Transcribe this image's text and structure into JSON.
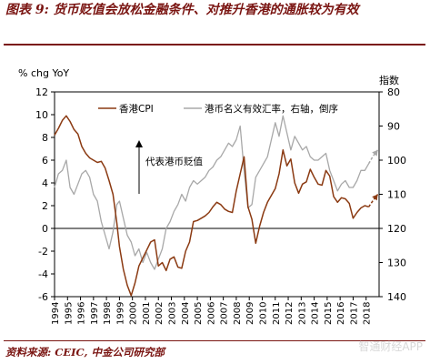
{
  "title": "图表 9: 货币贬值会放松金融条件、对推升香港的通胀较为有效",
  "source": "资料来源: CEIC, 中金公司研究部",
  "watermark": "智通财经APP",
  "colors": {
    "cpi": "#8b3a12",
    "hkd": "#a8a8a8",
    "title": "#7a1512"
  },
  "chart_data": {
    "type": "line",
    "title": "图表 9: 货币贬值会放松金融条件、对推升香港的通胀较为有效",
    "ylabel": "% chg YoY",
    "y2label": "指数",
    "ylim": [
      -6,
      12
    ],
    "y_ticks": [
      -6,
      -4,
      -2,
      0,
      2,
      4,
      6,
      8,
      10,
      12
    ],
    "y2lim": [
      140,
      80
    ],
    "y2_inverted": true,
    "y2_ticks": [
      80,
      90,
      100,
      110,
      120,
      130,
      140
    ],
    "x_ticks": [
      "1994",
      "1995",
      "1996",
      "1997",
      "1998",
      "1999",
      "2000",
      "2001",
      "2002",
      "2003",
      "2004",
      "2005",
      "2006",
      "2007",
      "2008",
      "2009",
      "2010",
      "2011",
      "2012",
      "2013",
      "2014",
      "2015",
      "2016",
      "2017",
      "2018"
    ],
    "xlim": [
      1994,
      2019
    ],
    "legend_position": "top",
    "annotation": "代表港币贬值",
    "series": [
      {
        "name": "香港CPI",
        "axis": "left",
        "x": [
          1994,
          1994.3,
          1994.6,
          1994.9,
          1995.2,
          1995.5,
          1995.8,
          1996.1,
          1996.4,
          1996.7,
          1997.0,
          1997.3,
          1997.6,
          1997.9,
          1998.2,
          1998.5,
          1998.8,
          1999.0,
          1999.3,
          1999.6,
          1999.9,
          2000.2,
          2000.5,
          2000.8,
          2001.1,
          2001.4,
          2001.7,
          2002.0,
          2002.3,
          2002.6,
          2002.9,
          2003.2,
          2003.5,
          2003.8,
          2004.1,
          2004.4,
          2004.7,
          2005.0,
          2005.3,
          2005.6,
          2005.9,
          2006.2,
          2006.5,
          2006.8,
          2007.1,
          2007.4,
          2007.7,
          2008.0,
          2008.3,
          2008.6,
          2008.9,
          2009.2,
          2009.5,
          2009.8,
          2010.1,
          2010.4,
          2010.7,
          2011.0,
          2011.3,
          2011.6,
          2011.9,
          2012.2,
          2012.5,
          2012.8,
          2013.1,
          2013.4,
          2013.7,
          2014.0,
          2014.3,
          2014.6,
          2014.9,
          2015.2,
          2015.5,
          2015.8,
          2016.1,
          2016.4,
          2016.7,
          2017.0,
          2017.3,
          2017.6,
          2017.9,
          2018.2
        ],
        "values": [
          8.2,
          8.8,
          9.5,
          9.9,
          9.4,
          8.7,
          8.3,
          7.2,
          6.6,
          6.2,
          6.0,
          5.8,
          5.9,
          5.3,
          4.2,
          3.0,
          0.5,
          -1.6,
          -3.6,
          -5.0,
          -5.9,
          -4.8,
          -3.3,
          -2.6,
          -1.9,
          -1.2,
          -1.0,
          -3.3,
          -3.0,
          -3.7,
          -2.7,
          -2.5,
          -3.4,
          -3.5,
          -2.0,
          -1.2,
          0.6,
          0.7,
          0.9,
          1.1,
          1.4,
          1.9,
          2.3,
          2.1,
          1.7,
          1.5,
          1.4,
          3.3,
          4.8,
          6.3,
          1.9,
          0.8,
          -1.3,
          0.2,
          1.4,
          2.3,
          2.9,
          3.5,
          4.8,
          6.9,
          5.5,
          6.1,
          4.0,
          3.1,
          3.9,
          4.1,
          5.2,
          4.5,
          3.9,
          3.8,
          5.1,
          4.6,
          2.8,
          2.3,
          2.7,
          2.6,
          2.2,
          0.9,
          1.4,
          1.8,
          2.0,
          1.9
        ]
      },
      {
        "name": "港币名义有效汇率，右轴，倒序",
        "axis": "right",
        "x": [
          1994,
          1994.3,
          1994.6,
          1994.9,
          1995.2,
          1995.5,
          1995.8,
          1996.1,
          1996.4,
          1996.7,
          1997.0,
          1997.3,
          1997.6,
          1997.9,
          1998.2,
          1998.5,
          1998.8,
          1999.0,
          1999.3,
          1999.6,
          1999.9,
          2000.2,
          2000.5,
          2000.8,
          2001.1,
          2001.4,
          2001.7,
          2002.0,
          2002.3,
          2002.6,
          2002.9,
          2003.2,
          2003.5,
          2003.8,
          2004.1,
          2004.4,
          2004.7,
          2005.0,
          2005.3,
          2005.6,
          2005.9,
          2006.2,
          2006.5,
          2006.8,
          2007.1,
          2007.4,
          2007.7,
          2008.0,
          2008.3,
          2008.6,
          2008.9,
          2009.2,
          2009.5,
          2009.8,
          2010.1,
          2010.4,
          2010.7,
          2011.0,
          2011.3,
          2011.6,
          2011.9,
          2012.2,
          2012.5,
          2012.8,
          2013.1,
          2013.4,
          2013.7,
          2014.0,
          2014.3,
          2014.6,
          2014.9,
          2015.2,
          2015.5,
          2015.8,
          2016.1,
          2016.4,
          2016.7,
          2017.0,
          2017.3,
          2017.6,
          2017.9,
          2018.2
        ],
        "values": [
          108,
          104,
          103,
          100,
          108,
          110,
          107,
          104,
          103,
          105,
          110,
          112,
          118,
          122,
          126,
          121,
          113,
          112,
          117,
          122,
          124,
          128,
          126,
          130,
          127,
          130,
          132,
          129,
          126,
          120,
          118,
          115,
          113,
          110,
          112,
          108,
          106,
          107,
          106,
          105,
          103,
          102,
          100,
          99,
          97,
          95,
          96,
          94,
          90,
          103,
          114,
          113,
          105,
          103,
          101,
          99,
          94,
          89,
          93,
          87,
          92,
          97,
          93,
          95,
          97,
          96,
          99,
          100,
          100,
          99,
          98,
          103,
          106,
          109,
          107,
          106,
          108,
          108,
          106,
          103,
          103,
          101
        ]
      }
    ],
    "projections": [
      {
        "series": "香港CPI",
        "x": [
          2018.2,
          2018.5,
          2018.9
        ],
        "values": [
          1.9,
          2.4,
          3.0
        ]
      },
      {
        "series": "港币名义有效汇率，右轴，倒序",
        "x": [
          2018.2,
          2018.5,
          2018.9
        ],
        "values": [
          101,
          99,
          97
        ]
      }
    ]
  }
}
